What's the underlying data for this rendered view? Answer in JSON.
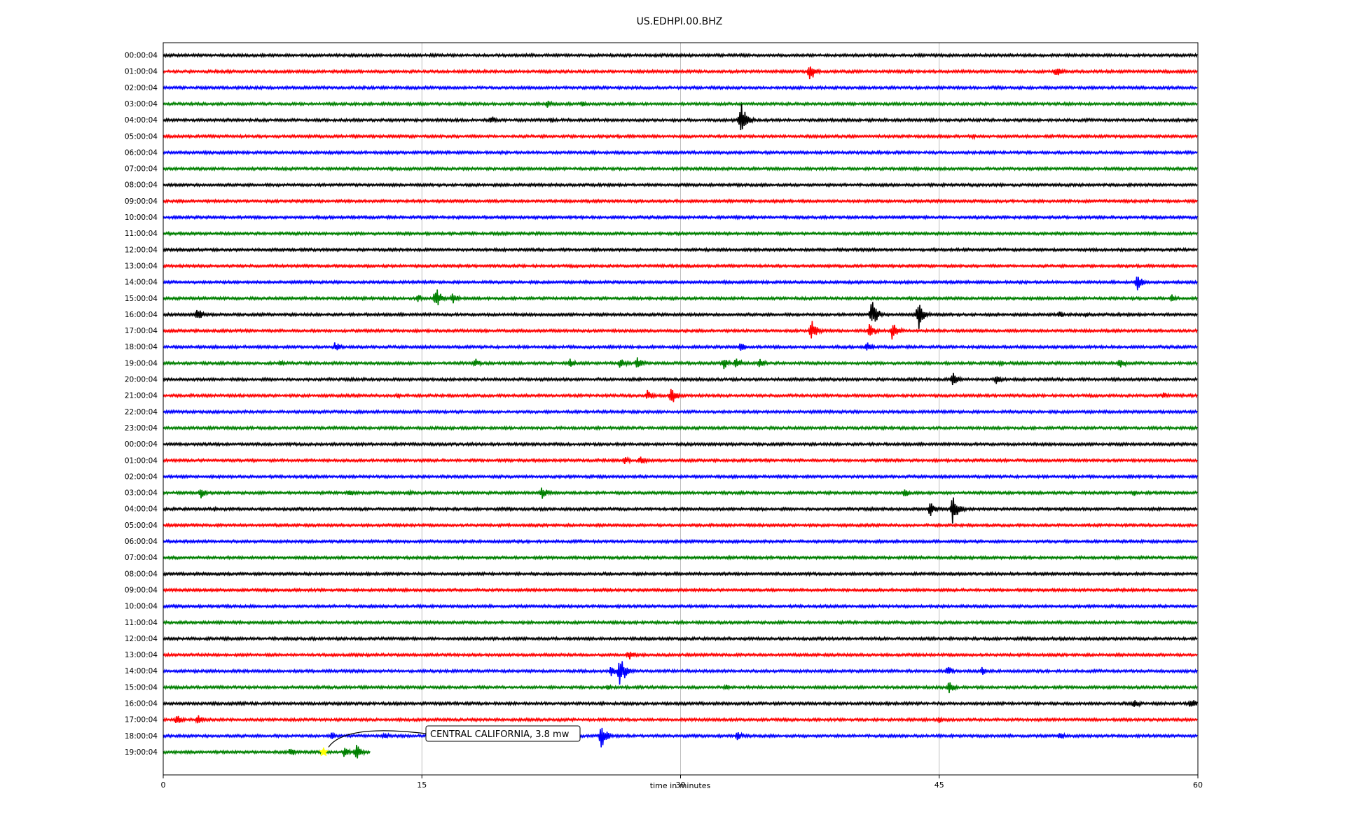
{
  "chart_data": {
    "type": "line",
    "subtype": "helicorder",
    "title": "US.EDHPI.00.BHZ",
    "xlabel": "time in minutes",
    "xlim": [
      0,
      60
    ],
    "x_ticks": [
      "0",
      "15",
      "30",
      "45",
      "60"
    ],
    "x_tick_values": [
      0,
      15,
      30,
      45,
      60
    ],
    "grid": "vertical lines at 15, 30, 45",
    "trace_colors": [
      "#000000",
      "#ff0000",
      "#0000ff",
      "#008000"
    ],
    "row_labels": [
      "00:00:04",
      "01:00:04",
      "02:00:04",
      "03:00:04",
      "04:00:04",
      "05:00:04",
      "06:00:04",
      "07:00:04",
      "08:00:04",
      "09:00:04",
      "10:00:04",
      "11:00:04",
      "12:00:04",
      "13:00:04",
      "14:00:04",
      "15:00:04",
      "16:00:04",
      "17:00:04",
      "18:00:04",
      "19:00:04",
      "20:00:04",
      "21:00:04",
      "22:00:04",
      "23:00:04",
      "00:00:04",
      "01:00:04",
      "02:00:04",
      "03:00:04",
      "04:00:04",
      "05:00:04",
      "06:00:04",
      "07:00:04",
      "08:00:04",
      "09:00:04",
      "10:00:04",
      "11:00:04",
      "12:00:04",
      "13:00:04",
      "14:00:04",
      "15:00:04",
      "16:00:04",
      "17:00:04",
      "18:00:04",
      "19:00:04"
    ],
    "last_row_end_minute": 12,
    "events": [
      {
        "row": 1,
        "t": 37.5,
        "a": 16
      },
      {
        "row": 1,
        "t": 51.8,
        "a": 8
      },
      {
        "row": 3,
        "t": 22.3,
        "a": 6
      },
      {
        "row": 3,
        "t": 24.3,
        "a": 4
      },
      {
        "row": 4,
        "t": 19.0,
        "a": 7
      },
      {
        "row": 4,
        "t": 33.5,
        "a": 26
      },
      {
        "row": 4,
        "t": 22.5,
        "a": 4
      },
      {
        "row": 5,
        "t": 47.0,
        "a": 3
      },
      {
        "row": 14,
        "t": 56.5,
        "a": 12
      },
      {
        "row": 15,
        "t": 15.8,
        "a": 18
      },
      {
        "row": 15,
        "t": 16.8,
        "a": 8
      },
      {
        "row": 15,
        "t": 14.8,
        "a": 6
      },
      {
        "row": 15,
        "t": 58.5,
        "a": 6
      },
      {
        "row": 16,
        "t": 2.0,
        "a": 10
      },
      {
        "row": 16,
        "t": 41.1,
        "a": 22
      },
      {
        "row": 16,
        "t": 43.8,
        "a": 22
      },
      {
        "row": 16,
        "t": 52.0,
        "a": 5
      },
      {
        "row": 16,
        "t": 53.5,
        "a": 4
      },
      {
        "row": 17,
        "t": 37.6,
        "a": 16
      },
      {
        "row": 17,
        "t": 41.0,
        "a": 12
      },
      {
        "row": 17,
        "t": 42.3,
        "a": 14
      },
      {
        "row": 18,
        "t": 10.0,
        "a": 8
      },
      {
        "row": 18,
        "t": 33.5,
        "a": 7
      },
      {
        "row": 18,
        "t": 40.8,
        "a": 8
      },
      {
        "row": 19,
        "t": 6.8,
        "a": 4
      },
      {
        "row": 19,
        "t": 18.1,
        "a": 7
      },
      {
        "row": 19,
        "t": 23.6,
        "a": 7
      },
      {
        "row": 19,
        "t": 26.5,
        "a": 9
      },
      {
        "row": 19,
        "t": 27.5,
        "a": 9
      },
      {
        "row": 19,
        "t": 32.5,
        "a": 9
      },
      {
        "row": 19,
        "t": 33.2,
        "a": 9
      },
      {
        "row": 19,
        "t": 34.6,
        "a": 8
      },
      {
        "row": 19,
        "t": 48.5,
        "a": 5
      },
      {
        "row": 19,
        "t": 55.5,
        "a": 8
      },
      {
        "row": 20,
        "t": 45.8,
        "a": 12
      },
      {
        "row": 20,
        "t": 48.3,
        "a": 8
      },
      {
        "row": 21,
        "t": 13.6,
        "a": 5
      },
      {
        "row": 21,
        "t": 28.1,
        "a": 9
      },
      {
        "row": 21,
        "t": 29.5,
        "a": 14
      },
      {
        "row": 21,
        "t": 58.0,
        "a": 6
      },
      {
        "row": 25,
        "t": 27.7,
        "a": 9
      },
      {
        "row": 25,
        "t": 26.8,
        "a": 6
      },
      {
        "row": 27,
        "t": 2.2,
        "a": 8
      },
      {
        "row": 27,
        "t": 10.8,
        "a": 6
      },
      {
        "row": 27,
        "t": 22.0,
        "a": 10
      },
      {
        "row": 27,
        "t": 43.0,
        "a": 7
      },
      {
        "row": 27,
        "t": 56.3,
        "a": 5
      },
      {
        "row": 27,
        "t": 14.3,
        "a": 5
      },
      {
        "row": 28,
        "t": 44.5,
        "a": 12
      },
      {
        "row": 28,
        "t": 45.8,
        "a": 22
      },
      {
        "row": 28,
        "t": 3.0,
        "a": 4
      },
      {
        "row": 38,
        "t": 26.5,
        "a": 24
      },
      {
        "row": 38,
        "t": 45.5,
        "a": 8
      },
      {
        "row": 38,
        "t": 47.5,
        "a": 6
      },
      {
        "row": 38,
        "t": 26.0,
        "a": 8
      },
      {
        "row": 37,
        "t": 27.0,
        "a": 8
      },
      {
        "row": 39,
        "t": 45.6,
        "a": 9
      },
      {
        "row": 39,
        "t": 32.6,
        "a": 5
      },
      {
        "row": 39,
        "t": 25.8,
        "a": 4
      },
      {
        "row": 40,
        "t": 56.3,
        "a": 9
      },
      {
        "row": 40,
        "t": 59.6,
        "a": 8
      },
      {
        "row": 40,
        "t": 4.6,
        "a": 3
      },
      {
        "row": 41,
        "t": 0.8,
        "a": 8
      },
      {
        "row": 41,
        "t": 2.0,
        "a": 8
      },
      {
        "row": 41,
        "t": 45.0,
        "a": 5
      },
      {
        "row": 42,
        "t": 25.4,
        "a": 18
      },
      {
        "row": 42,
        "t": 33.3,
        "a": 7
      },
      {
        "row": 42,
        "t": 52.0,
        "a": 6
      },
      {
        "row": 42,
        "t": 12.8,
        "a": 6
      },
      {
        "row": 42,
        "t": 9.8,
        "a": 6
      },
      {
        "row": 43,
        "t": 11.2,
        "a": 12
      },
      {
        "row": 43,
        "t": 7.4,
        "a": 8
      },
      {
        "row": 43,
        "t": 10.5,
        "a": 8
      }
    ],
    "annotations": [
      {
        "text": "CENTRAL CALIFORNIA, 3.8 mw",
        "row": 43,
        "t": 9.3,
        "marker": "star",
        "marker_color": "#ffff00"
      }
    ]
  }
}
